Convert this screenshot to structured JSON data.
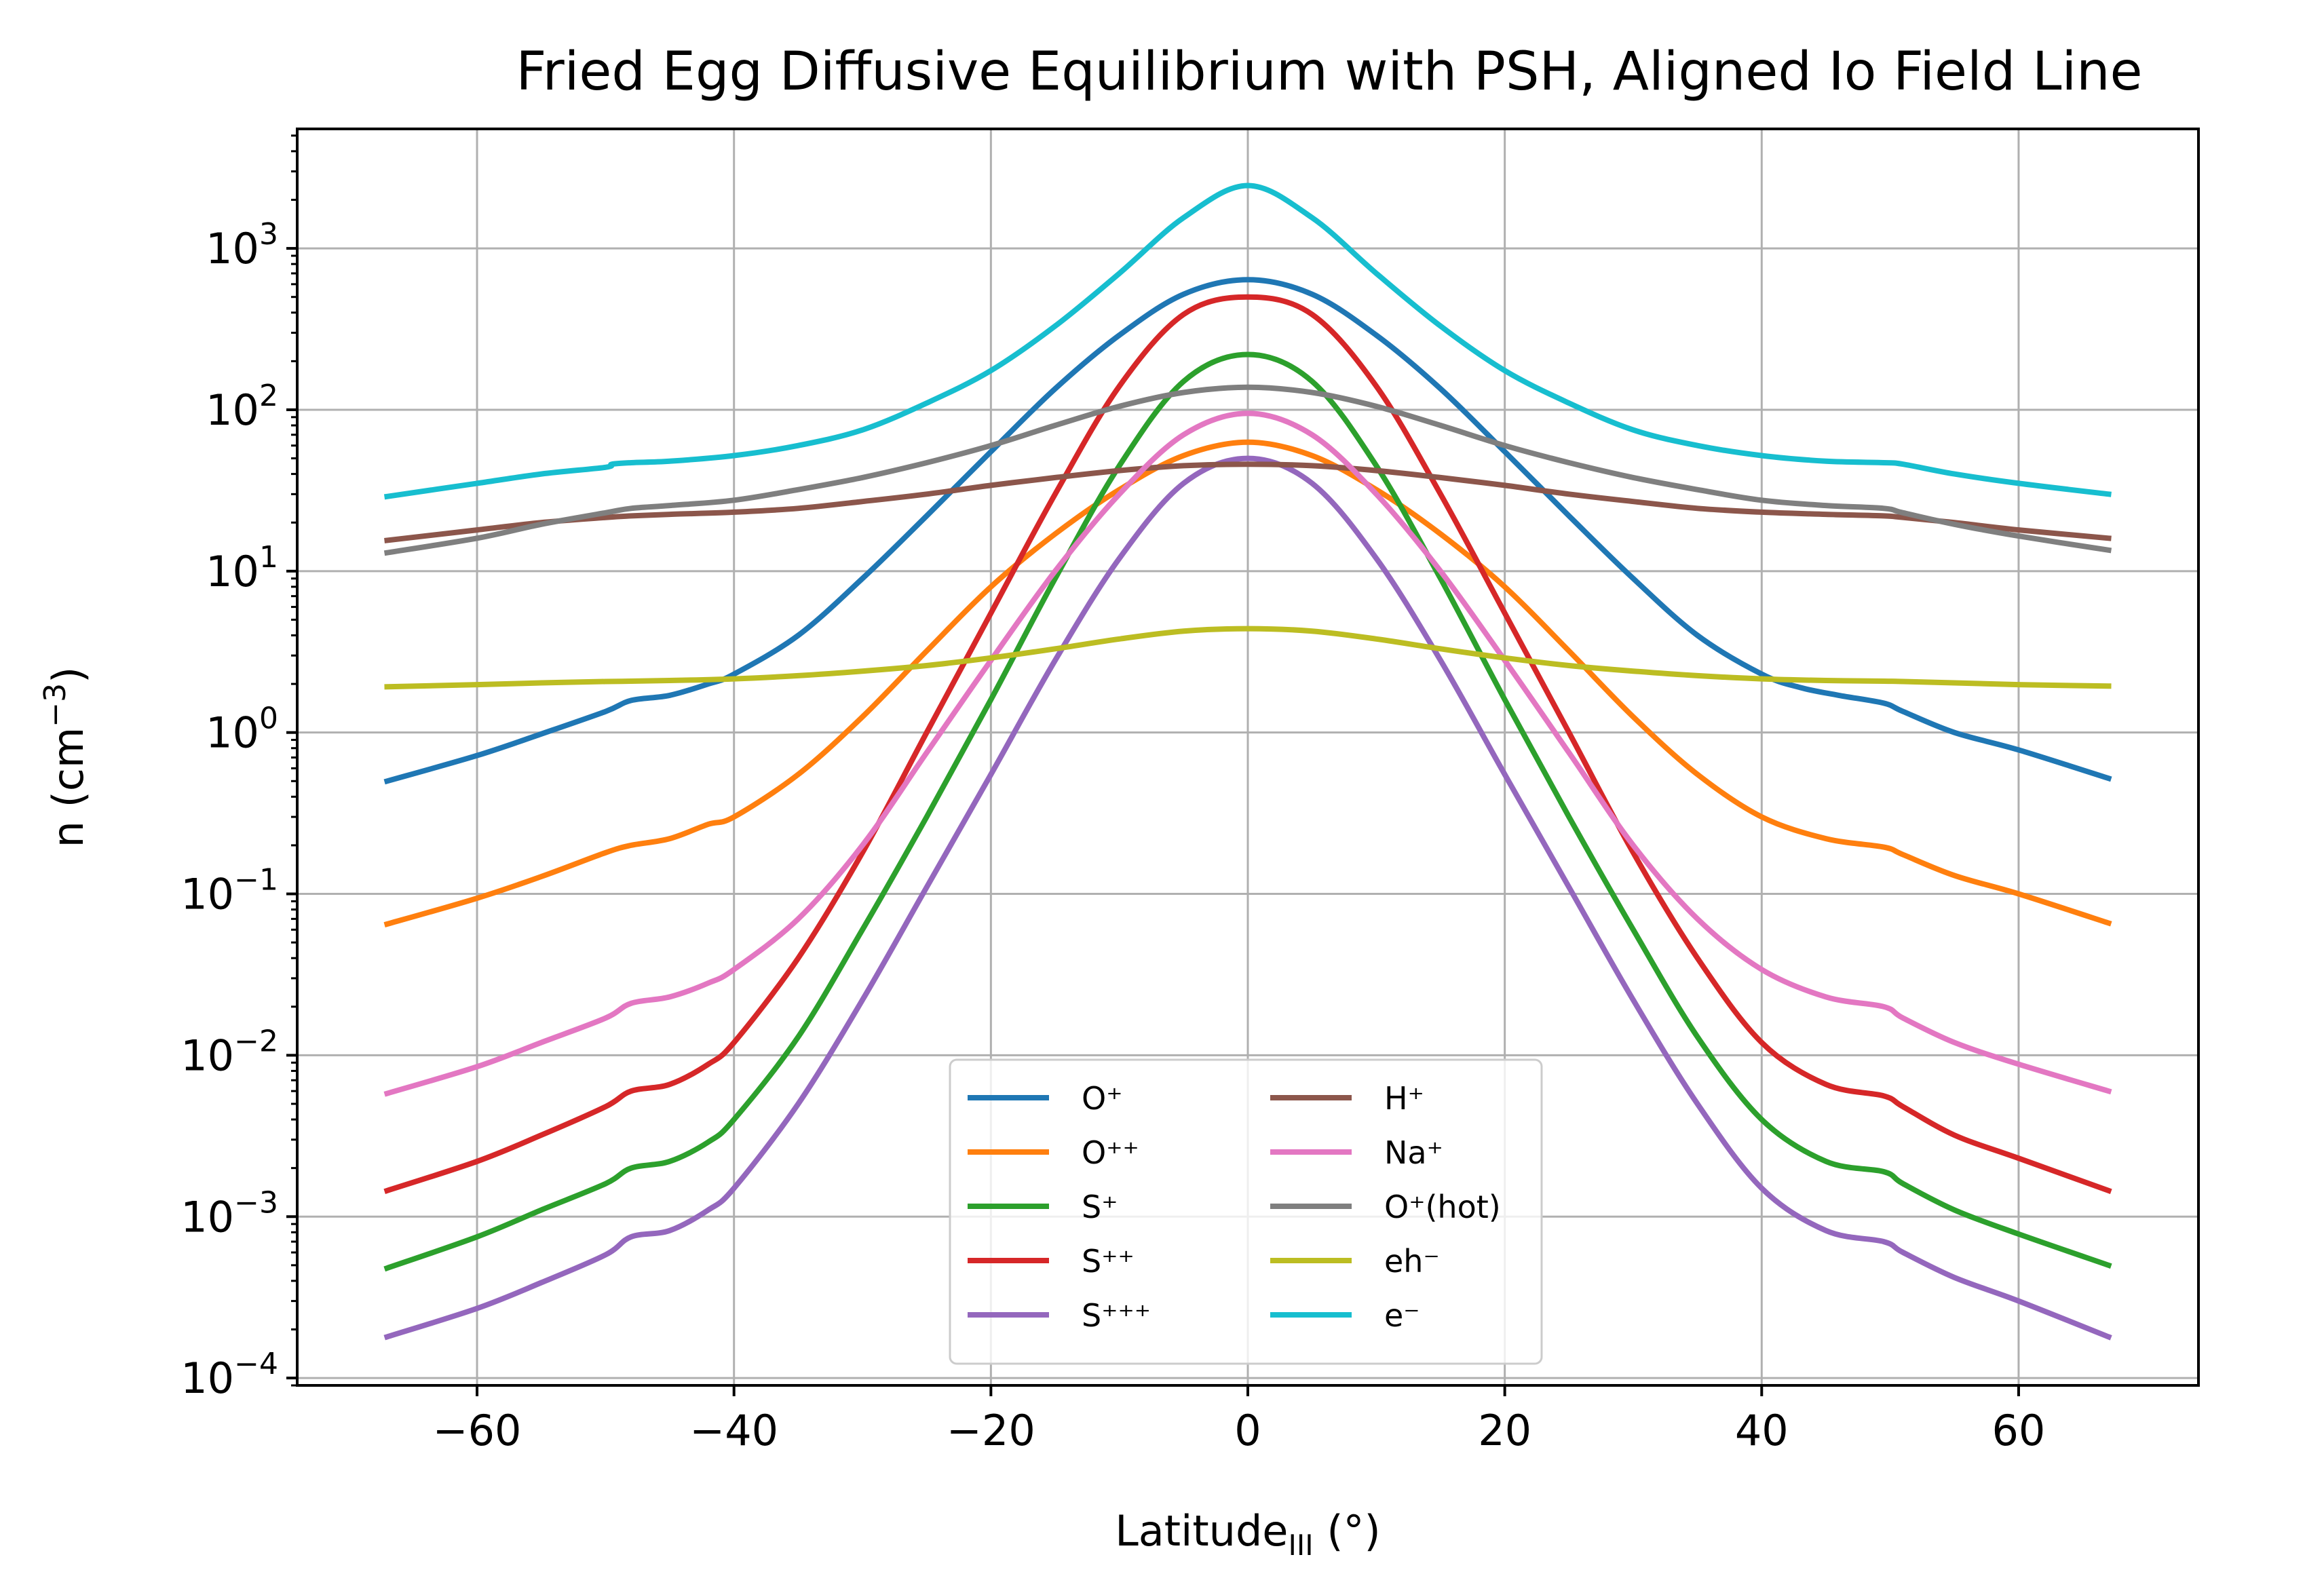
{
  "chart_data": {
    "type": "line",
    "title": "Fried Egg Diffusive Equilibrium with PSH, Aligned Io Field Line",
    "xlabel": "Latitude_III (°)",
    "ylabel": "n (cm^-3)",
    "xlabel_parts": {
      "main": "Latitude",
      "sub": "III",
      "suffix": " (°)"
    },
    "ylabel_parts": {
      "prefix": "n (cm",
      "sup": "−3",
      "suffix": ")"
    },
    "xlim": [
      -74,
      74
    ],
    "ylim": [
      9e-05,
      5500
    ],
    "yscale": "log",
    "grid": true,
    "legend": {
      "position": "lower center",
      "columns": 2
    },
    "xticks": [
      -60,
      -40,
      -20,
      0,
      20,
      40,
      60
    ],
    "xtick_labels": [
      "−60",
      "−40",
      "−20",
      "0",
      "20",
      "40",
      "60"
    ],
    "yticks": [
      0.0001,
      0.001,
      0.01,
      0.1,
      1,
      10,
      100,
      1000
    ],
    "ytick_labels": [
      {
        "base": "10",
        "exp": "−4"
      },
      {
        "base": "10",
        "exp": "−3"
      },
      {
        "base": "10",
        "exp": "−2"
      },
      {
        "base": "10",
        "exp": "−1"
      },
      {
        "base": "10",
        "exp": "0"
      },
      {
        "base": "10",
        "exp": "1"
      },
      {
        "base": "10",
        "exp": "2"
      },
      {
        "base": "10",
        "exp": "3"
      }
    ],
    "series": [
      {
        "name": "O⁺",
        "color": "#1f77b4",
        "points": [
          [
            -67,
            0.5
          ],
          [
            -60,
            0.72
          ],
          [
            -55,
            0.98
          ],
          [
            -50,
            1.35
          ],
          [
            -48,
            1.58
          ],
          [
            -45,
            1.7
          ],
          [
            -42,
            2.0
          ],
          [
            -40,
            2.3
          ],
          [
            -35,
            4.0
          ],
          [
            -30,
            9.0
          ],
          [
            -25,
            22
          ],
          [
            -20,
            55
          ],
          [
            -15,
            135
          ],
          [
            -10,
            290
          ],
          [
            -5,
            520
          ],
          [
            0,
            640
          ],
          [
            5,
            520
          ],
          [
            10,
            290
          ],
          [
            15,
            135
          ],
          [
            20,
            55
          ],
          [
            25,
            22
          ],
          [
            30,
            9.0
          ],
          [
            35,
            4.0
          ],
          [
            40,
            2.3
          ],
          [
            43,
            1.9
          ],
          [
            46,
            1.7
          ],
          [
            49.5,
            1.52
          ],
          [
            51,
            1.35
          ],
          [
            55,
            1.0
          ],
          [
            60,
            0.78
          ],
          [
            67,
            0.52
          ]
        ]
      },
      {
        "name": "O⁺⁺",
        "color": "#ff7f0e",
        "points": [
          [
            -67,
            0.065
          ],
          [
            -60,
            0.094
          ],
          [
            -55,
            0.128
          ],
          [
            -50,
            0.18
          ],
          [
            -48,
            0.2
          ],
          [
            -45,
            0.22
          ],
          [
            -42,
            0.27
          ],
          [
            -40,
            0.3
          ],
          [
            -35,
            0.55
          ],
          [
            -30,
            1.25
          ],
          [
            -25,
            3.2
          ],
          [
            -20,
            8.0
          ],
          [
            -15,
            17
          ],
          [
            -10,
            32
          ],
          [
            -5,
            52
          ],
          [
            0,
            63
          ],
          [
            5,
            52
          ],
          [
            10,
            32
          ],
          [
            15,
            17
          ],
          [
            20,
            8.0
          ],
          [
            25,
            3.2
          ],
          [
            30,
            1.25
          ],
          [
            35,
            0.55
          ],
          [
            40,
            0.3
          ],
          [
            45,
            0.22
          ],
          [
            49.5,
            0.195
          ],
          [
            51,
            0.175
          ],
          [
            55,
            0.13
          ],
          [
            60,
            0.1
          ],
          [
            67,
            0.066
          ]
        ]
      },
      {
        "name": "S⁺",
        "color": "#2ca02c",
        "points": [
          [
            -67,
            0.00048
          ],
          [
            -60,
            0.00075
          ],
          [
            -55,
            0.0011
          ],
          [
            -50,
            0.0016
          ],
          [
            -48,
            0.002
          ],
          [
            -45,
            0.0022
          ],
          [
            -42,
            0.0029
          ],
          [
            -40,
            0.004
          ],
          [
            -35,
            0.013
          ],
          [
            -30,
            0.06
          ],
          [
            -25,
            0.3
          ],
          [
            -20,
            1.6
          ],
          [
            -15,
            9.0
          ],
          [
            -10,
            45
          ],
          [
            -5,
            150
          ],
          [
            0,
            220
          ],
          [
            5,
            150
          ],
          [
            10,
            45
          ],
          [
            15,
            9.0
          ],
          [
            20,
            1.6
          ],
          [
            25,
            0.3
          ],
          [
            30,
            0.06
          ],
          [
            35,
            0.013
          ],
          [
            40,
            0.004
          ],
          [
            45,
            0.0022
          ],
          [
            49.5,
            0.0019
          ],
          [
            51,
            0.0016
          ],
          [
            55,
            0.0011
          ],
          [
            60,
            0.00078
          ],
          [
            67,
            0.0005
          ]
        ]
      },
      {
        "name": "S⁺⁺",
        "color": "#d62728",
        "points": [
          [
            -67,
            0.00145
          ],
          [
            -60,
            0.0022
          ],
          [
            -55,
            0.0032
          ],
          [
            -50,
            0.0048
          ],
          [
            -48,
            0.006
          ],
          [
            -45,
            0.0066
          ],
          [
            -42,
            0.0088
          ],
          [
            -40,
            0.012
          ],
          [
            -35,
            0.04
          ],
          [
            -30,
            0.18
          ],
          [
            -25,
            1.0
          ],
          [
            -20,
            5.5
          ],
          [
            -15,
            30
          ],
          [
            -10,
            140
          ],
          [
            -5,
            390
          ],
          [
            0,
            500
          ],
          [
            5,
            390
          ],
          [
            10,
            140
          ],
          [
            15,
            30
          ],
          [
            20,
            5.5
          ],
          [
            25,
            1.0
          ],
          [
            30,
            0.18
          ],
          [
            35,
            0.04
          ],
          [
            40,
            0.012
          ],
          [
            45,
            0.0066
          ],
          [
            49.5,
            0.0056
          ],
          [
            51,
            0.0048
          ],
          [
            55,
            0.0032
          ],
          [
            60,
            0.0023
          ],
          [
            67,
            0.00145
          ]
        ]
      },
      {
        "name": "S⁺⁺⁺",
        "color": "#9467bd",
        "points": [
          [
            -67,
            0.00018
          ],
          [
            -60,
            0.00027
          ],
          [
            -55,
            0.00039
          ],
          [
            -50,
            0.00058
          ],
          [
            -48,
            0.00075
          ],
          [
            -45,
            0.00082
          ],
          [
            -42,
            0.0011
          ],
          [
            -40,
            0.0015
          ],
          [
            -35,
            0.005
          ],
          [
            -30,
            0.022
          ],
          [
            -25,
            0.11
          ],
          [
            -20,
            0.55
          ],
          [
            -15,
            2.8
          ],
          [
            -10,
            12
          ],
          [
            -5,
            35
          ],
          [
            0,
            50
          ],
          [
            5,
            35
          ],
          [
            10,
            12
          ],
          [
            15,
            2.8
          ],
          [
            20,
            0.55
          ],
          [
            25,
            0.11
          ],
          [
            30,
            0.022
          ],
          [
            35,
            0.005
          ],
          [
            40,
            0.0015
          ],
          [
            45,
            0.00082
          ],
          [
            49.5,
            0.0007
          ],
          [
            51,
            0.0006
          ],
          [
            55,
            0.00042
          ],
          [
            60,
            0.0003
          ],
          [
            67,
            0.00018
          ]
        ]
      },
      {
        "name": "H⁺",
        "color": "#8c564b",
        "points": [
          [
            -67,
            15.5
          ],
          [
            -60,
            18
          ],
          [
            -55,
            20
          ],
          [
            -50,
            21.5
          ],
          [
            -48,
            22
          ],
          [
            -45,
            22.5
          ],
          [
            -40,
            23.2
          ],
          [
            -35,
            24.5
          ],
          [
            -30,
            27
          ],
          [
            -25,
            30
          ],
          [
            -20,
            34
          ],
          [
            -15,
            38
          ],
          [
            -10,
            42
          ],
          [
            -5,
            45
          ],
          [
            0,
            46
          ],
          [
            5,
            45
          ],
          [
            10,
            42
          ],
          [
            15,
            38
          ],
          [
            20,
            34
          ],
          [
            25,
            30
          ],
          [
            30,
            27
          ],
          [
            35,
            24.5
          ],
          [
            40,
            23.2
          ],
          [
            45,
            22.5
          ],
          [
            49.5,
            22
          ],
          [
            51,
            21.5
          ],
          [
            55,
            20
          ],
          [
            60,
            18
          ],
          [
            67,
            16
          ]
        ]
      },
      {
        "name": "Na⁺",
        "color": "#e377c2",
        "points": [
          [
            -67,
            0.0058
          ],
          [
            -60,
            0.0085
          ],
          [
            -55,
            0.012
          ],
          [
            -50,
            0.017
          ],
          [
            -48,
            0.021
          ],
          [
            -45,
            0.023
          ],
          [
            -42,
            0.028
          ],
          [
            -40,
            0.034
          ],
          [
            -35,
            0.07
          ],
          [
            -30,
            0.2
          ],
          [
            -25,
            0.75
          ],
          [
            -20,
            2.8
          ],
          [
            -15,
            10
          ],
          [
            -10,
            30
          ],
          [
            -5,
            70
          ],
          [
            0,
            95
          ],
          [
            5,
            70
          ],
          [
            10,
            30
          ],
          [
            15,
            10
          ],
          [
            20,
            2.8
          ],
          [
            25,
            0.75
          ],
          [
            30,
            0.2
          ],
          [
            35,
            0.07
          ],
          [
            40,
            0.034
          ],
          [
            45,
            0.023
          ],
          [
            49.5,
            0.02
          ],
          [
            51,
            0.017
          ],
          [
            55,
            0.012
          ],
          [
            60,
            0.0088
          ],
          [
            67,
            0.006
          ]
        ]
      },
      {
        "name": "O⁺(hot)",
        "color": "#7f7f7f",
        "points": [
          [
            -67,
            13
          ],
          [
            -60,
            16
          ],
          [
            -55,
            19.5
          ],
          [
            -50,
            23
          ],
          [
            -48,
            24.5
          ],
          [
            -45,
            25.5
          ],
          [
            -40,
            27.5
          ],
          [
            -35,
            32
          ],
          [
            -30,
            38
          ],
          [
            -25,
            47
          ],
          [
            -20,
            60
          ],
          [
            -15,
            80
          ],
          [
            -10,
            105
          ],
          [
            -5,
            128
          ],
          [
            0,
            138
          ],
          [
            5,
            128
          ],
          [
            10,
            105
          ],
          [
            15,
            80
          ],
          [
            20,
            60
          ],
          [
            25,
            47
          ],
          [
            30,
            38
          ],
          [
            35,
            32
          ],
          [
            40,
            27.5
          ],
          [
            45,
            25.5
          ],
          [
            49.5,
            24.5
          ],
          [
            51,
            23
          ],
          [
            55,
            19.5
          ],
          [
            60,
            16.5
          ],
          [
            67,
            13.5
          ]
        ]
      },
      {
        "name": "eh⁻",
        "color": "#bcbd22",
        "points": [
          [
            -67,
            1.92
          ],
          [
            -60,
            1.98
          ],
          [
            -55,
            2.03
          ],
          [
            -50,
            2.07
          ],
          [
            -48,
            2.08
          ],
          [
            -45,
            2.1
          ],
          [
            -40,
            2.15
          ],
          [
            -35,
            2.25
          ],
          [
            -30,
            2.4
          ],
          [
            -25,
            2.6
          ],
          [
            -20,
            2.9
          ],
          [
            -15,
            3.3
          ],
          [
            -10,
            3.8
          ],
          [
            -5,
            4.25
          ],
          [
            0,
            4.4
          ],
          [
            5,
            4.25
          ],
          [
            10,
            3.8
          ],
          [
            15,
            3.3
          ],
          [
            20,
            2.9
          ],
          [
            25,
            2.6
          ],
          [
            30,
            2.4
          ],
          [
            35,
            2.25
          ],
          [
            40,
            2.15
          ],
          [
            45,
            2.1
          ],
          [
            49.5,
            2.08
          ],
          [
            51,
            2.07
          ],
          [
            55,
            2.03
          ],
          [
            60,
            1.98
          ],
          [
            67,
            1.94
          ]
        ]
      },
      {
        "name": "e⁻",
        "color": "#17becf",
        "points": [
          [
            -67,
            29
          ],
          [
            -60,
            35
          ],
          [
            -55,
            40
          ],
          [
            -50,
            44
          ],
          [
            -49.5,
            46
          ],
          [
            -48,
            47
          ],
          [
            -45,
            48
          ],
          [
            -40,
            52
          ],
          [
            -35,
            60
          ],
          [
            -30,
            75
          ],
          [
            -25,
            110
          ],
          [
            -20,
            175
          ],
          [
            -15,
            330
          ],
          [
            -10,
            700
          ],
          [
            -5,
            1550
          ],
          [
            0,
            2450
          ],
          [
            5,
            1550
          ],
          [
            10,
            700
          ],
          [
            15,
            330
          ],
          [
            20,
            175
          ],
          [
            25,
            110
          ],
          [
            30,
            75
          ],
          [
            35,
            60
          ],
          [
            40,
            52
          ],
          [
            45,
            48
          ],
          [
            49.5,
            47
          ],
          [
            51,
            46
          ],
          [
            55,
            40
          ],
          [
            60,
            35
          ],
          [
            67,
            30
          ]
        ]
      }
    ]
  }
}
